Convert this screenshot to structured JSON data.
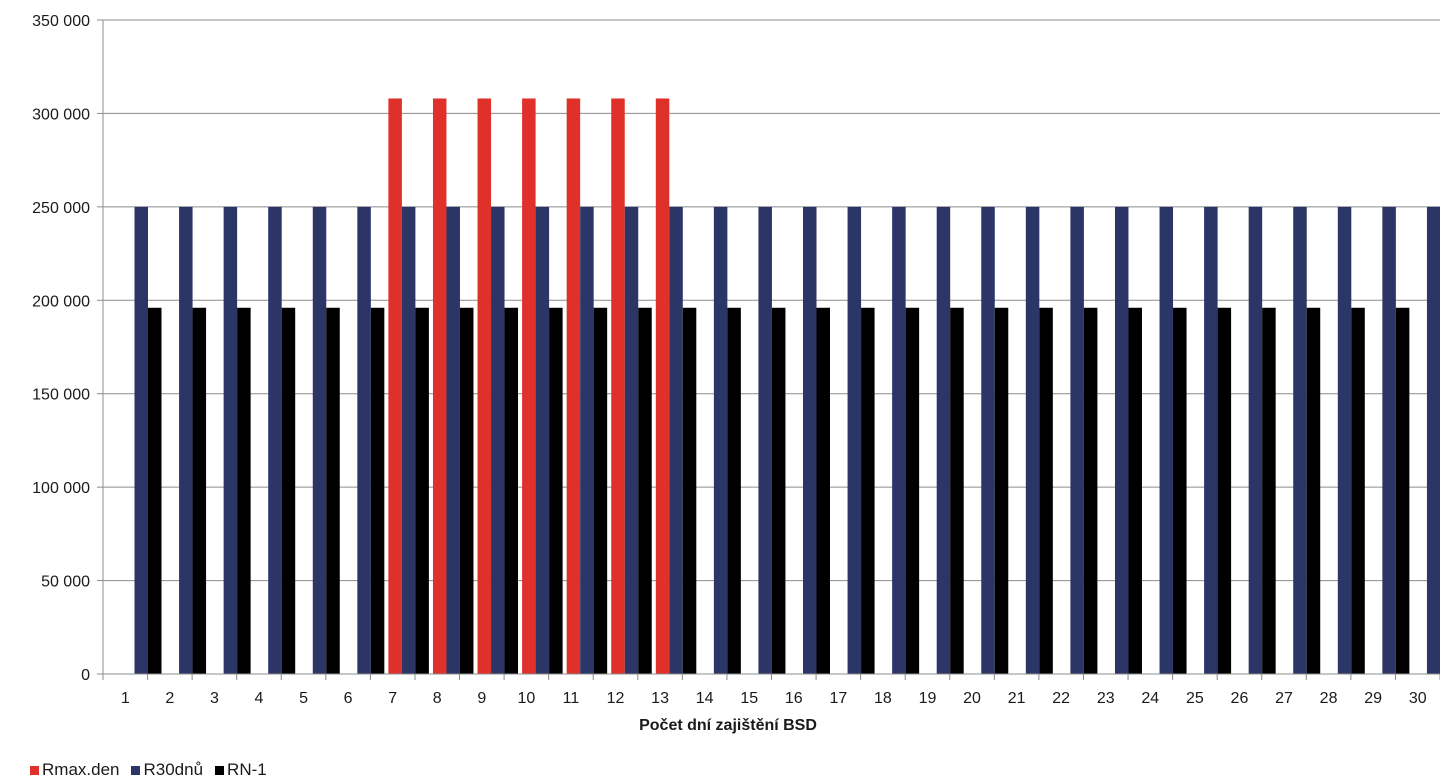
{
  "chart_data": {
    "type": "bar",
    "title": "",
    "xlabel": "Počet dní zajištění BSD",
    "ylabel": "",
    "ylim": [
      0,
      350000
    ],
    "y_ticks": [
      0,
      50000,
      100000,
      150000,
      200000,
      250000,
      300000,
      350000
    ],
    "y_tick_labels": [
      "0",
      "50 000",
      "100 000",
      "150 000",
      "200 000",
      "250 000",
      "300 000",
      "350 000"
    ],
    "grid": true,
    "legend_position": "bottom-left",
    "categories": [
      "1",
      "2",
      "3",
      "4",
      "5",
      "6",
      "7",
      "8",
      "9",
      "10",
      "11",
      "12",
      "13",
      "14",
      "15",
      "16",
      "17",
      "18",
      "19",
      "20",
      "21",
      "22",
      "23",
      "24",
      "25",
      "26",
      "27",
      "28",
      "29",
      "30"
    ],
    "series": [
      {
        "name": "Rmax.den",
        "color": "#e0302a",
        "values": [
          null,
          null,
          null,
          null,
          null,
          null,
          308000,
          308000,
          308000,
          308000,
          308000,
          308000,
          308000,
          null,
          null,
          null,
          null,
          null,
          null,
          null,
          null,
          null,
          null,
          null,
          null,
          null,
          null,
          null,
          null,
          null
        ]
      },
      {
        "name": "R30dnů",
        "color": "#2b3566",
        "values": [
          250000,
          250000,
          250000,
          250000,
          250000,
          250000,
          250000,
          250000,
          250000,
          250000,
          250000,
          250000,
          250000,
          250000,
          250000,
          250000,
          250000,
          250000,
          250000,
          250000,
          250000,
          250000,
          250000,
          250000,
          250000,
          250000,
          250000,
          250000,
          250000,
          250000
        ]
      },
      {
        "name": "RN-1",
        "color": "#000000",
        "values": [
          196000,
          196000,
          196000,
          196000,
          196000,
          196000,
          196000,
          196000,
          196000,
          196000,
          196000,
          196000,
          196000,
          196000,
          196000,
          196000,
          196000,
          196000,
          196000,
          196000,
          196000,
          196000,
          196000,
          196000,
          196000,
          196000,
          196000,
          196000,
          196000,
          196000
        ]
      }
    ]
  }
}
